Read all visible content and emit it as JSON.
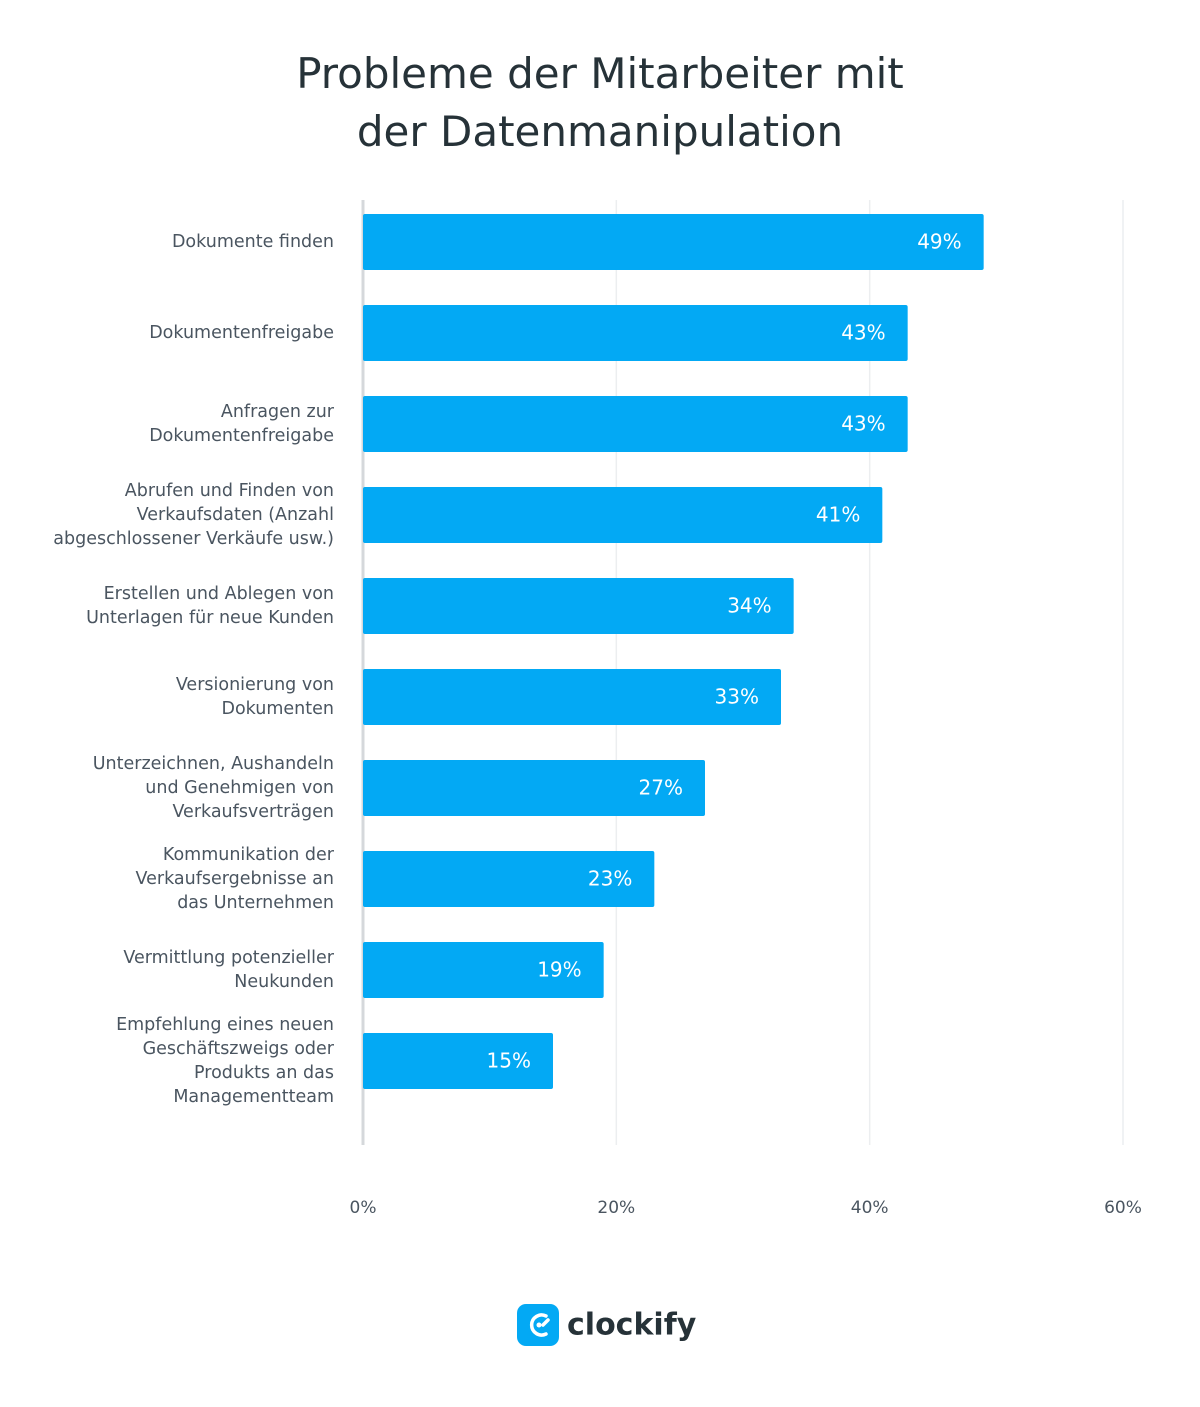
{
  "chart_data": {
    "type": "hbar",
    "title": "Probleme der Mitarbeiter mit\nder Datenmanipulation",
    "categories": [
      "Dokumente finden",
      "Dokumentenfreigabe",
      "Anfragen zur\nDokumentenfreigabe",
      "Abrufen und Finden von\nVerkaufsdaten (Anzahl\nabgeschlossener Verkäufe usw.)",
      "Erstellen und Ablegen von\nUnterlagen für neue Kunden",
      "Versionierung von\nDokumenten",
      "Unterzeichnen, Aushandeln\nund Genehmigen von\nVerkaufsverträgen",
      "Kommunikation der\nVerkaufsergebnisse an\ndas Unternehmen",
      "Vermittlung potenzieller\nNeukunden",
      "Empfehlung eines neuen\nGeschäftszweigs oder\nProdukts an das\nManagementteam"
    ],
    "values": [
      49,
      43,
      43,
      41,
      34,
      33,
      27,
      23,
      19,
      15
    ],
    "value_labels": [
      "49%",
      "43%",
      "43%",
      "41%",
      "34%",
      "33%",
      "27%",
      "23%",
      "19%",
      "15%"
    ],
    "color": "#03a9f4",
    "xlim": [
      0,
      60
    ],
    "xticks": [
      {
        "value": 0,
        "label": "0%"
      },
      {
        "value": 20,
        "label": "20%"
      },
      {
        "value": 40,
        "label": "40%"
      },
      {
        "value": 60,
        "label": "60%"
      }
    ],
    "grid": true,
    "logo": "clockify"
  }
}
